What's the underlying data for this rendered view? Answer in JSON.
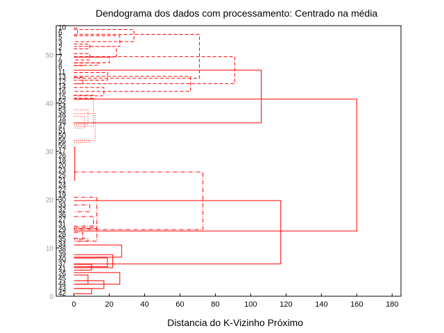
{
  "chart_data": {
    "type": "dendrogram",
    "title": "Dendograma dos dados com processamento: Centrado na média",
    "xlabel": "Distancia do K-Vizinho Próximo",
    "ylabel": "",
    "xlim": [
      -10,
      185
    ],
    "ylim": [
      0,
      56
    ],
    "xticks": [
      "0",
      "20",
      "40",
      "60",
      "80",
      "100",
      "120",
      "140",
      "160",
      "180"
    ],
    "yticks": [
      "0",
      "10",
      "20",
      "30",
      "40",
      "50"
    ],
    "colors": {
      "tree": "#ff0000",
      "axis": "#000000",
      "yticks": "#999999"
    },
    "leaves": [
      "10",
      "6",
      "5",
      "3",
      "2",
      "1",
      "7",
      "9",
      "8",
      "11",
      "13",
      "12",
      "14",
      "16",
      "15",
      "52",
      "54",
      "53",
      "49",
      "48",
      "47",
      "51",
      "50",
      "56",
      "55",
      "17",
      "26",
      "18",
      "20",
      "23",
      "25",
      "21",
      "24",
      "22",
      "19",
      "30",
      "33",
      "32",
      "36",
      "27",
      "31",
      "29",
      "28",
      "35",
      "34",
      "38",
      "39",
      "40",
      "37",
      "41",
      "26",
      "45",
      "44",
      "43",
      "42"
    ],
    "merges": [
      {
        "y1": 55.5,
        "y2": 53.9,
        "x": 2,
        "style": "dashed"
      },
      {
        "y1": 55.2,
        "y2": 52.7,
        "x": 34,
        "style": "dashed"
      },
      {
        "y1": 53.9,
        "y2": 51.7,
        "x": 26,
        "style": "dashed"
      },
      {
        "y1": 52.2,
        "y2": 51.2,
        "x": 9,
        "style": "dashed"
      },
      {
        "y1": 51.7,
        "y2": 49.5,
        "x": 24,
        "style": "dashed"
      },
      {
        "y1": 50.2,
        "y2": 48.9,
        "x": 9,
        "style": "dashed"
      },
      {
        "y1": 49.5,
        "y2": 48.3,
        "x": 20,
        "style": "dashed"
      },
      {
        "y1": 48.3,
        "y2": 47.8,
        "x": 14,
        "style": "dashed"
      },
      {
        "y1": 48.3,
        "y2": 47.7,
        "x": 5,
        "style": "dashed"
      },
      {
        "y1": 54.2,
        "y2": 45.1,
        "x": 71,
        "style": "dashed"
      },
      {
        "y1": 45.3,
        "y2": 44.0,
        "x": 5,
        "style": "dashed"
      },
      {
        "y1": 46.3,
        "y2": 44.7,
        "x": 19,
        "style": "dashed"
      },
      {
        "y1": 43.2,
        "y2": 41.5,
        "x": 17,
        "style": "dashed"
      },
      {
        "y1": 41.6,
        "y2": 41.0,
        "x": 11,
        "style": "dashed"
      },
      {
        "y1": 45.5,
        "y2": 42.4,
        "x": 66,
        "style": "dashed"
      },
      {
        "y1": 49.6,
        "y2": 44.0,
        "x": 91,
        "style": "dashed"
      },
      {
        "y1": 46.8,
        "y2": 35.9,
        "x": 106,
        "style": "solid"
      },
      {
        "y1": 40.7,
        "y2": 35.2,
        "x": 11,
        "style": "dotted"
      },
      {
        "y1": 38.6,
        "y2": 35.6,
        "x": 8,
        "style": "dotted"
      },
      {
        "y1": 37.2,
        "y2": 34.8,
        "x": 6,
        "style": "dotted"
      },
      {
        "y1": 32.3,
        "y2": 31.8,
        "x": 9,
        "style": "dotted"
      },
      {
        "y1": 37.8,
        "y2": 32.2,
        "x": 12,
        "style": "dotted"
      },
      {
        "y1": 30.8,
        "y2": 24.0,
        "x": 0.5,
        "style": "solid"
      },
      {
        "y1": 25.7,
        "y2": 13.8,
        "x": 73,
        "style": "dashdot"
      },
      {
        "y1": 20.5,
        "y2": 14.0,
        "x": 13,
        "style": "dashdot"
      },
      {
        "y1": 18.9,
        "y2": 17.5,
        "x": 9,
        "style": "dashdot"
      },
      {
        "y1": 16.5,
        "y2": 14.2,
        "x": 11,
        "style": "dashdot"
      },
      {
        "y1": 14.5,
        "y2": 11.4,
        "x": 13,
        "style": "dashdot"
      },
      {
        "y1": 13.2,
        "y2": 11.8,
        "x": 5,
        "style": "dashdot"
      },
      {
        "y1": 12.0,
        "y2": 11.4,
        "x": 8,
        "style": "dashdot"
      },
      {
        "y1": 10.6,
        "y2": 8.1,
        "x": 27,
        "style": "solid"
      },
      {
        "y1": 8.6,
        "y2": 5.9,
        "x": 22,
        "style": "solid"
      },
      {
        "y1": 7.9,
        "y2": 6.1,
        "x": 19,
        "style": "solid"
      },
      {
        "y1": 6.6,
        "y2": 5.4,
        "x": 10,
        "style": "solid"
      },
      {
        "y1": 4.9,
        "y2": 2.5,
        "x": 26,
        "style": "solid"
      },
      {
        "y1": 4.4,
        "y2": 2.5,
        "x": 8,
        "style": "solid"
      },
      {
        "y1": 3.2,
        "y2": 1.6,
        "x": 17,
        "style": "solid"
      },
      {
        "y1": 1.6,
        "y2": 0.5,
        "x": 10,
        "style": "solid"
      },
      {
        "y1": 19.8,
        "y2": 6.7,
        "x": 117,
        "style": "solid"
      },
      {
        "y1": 40.8,
        "y2": 13.5,
        "x": 160,
        "style": "solid"
      }
    ]
  }
}
